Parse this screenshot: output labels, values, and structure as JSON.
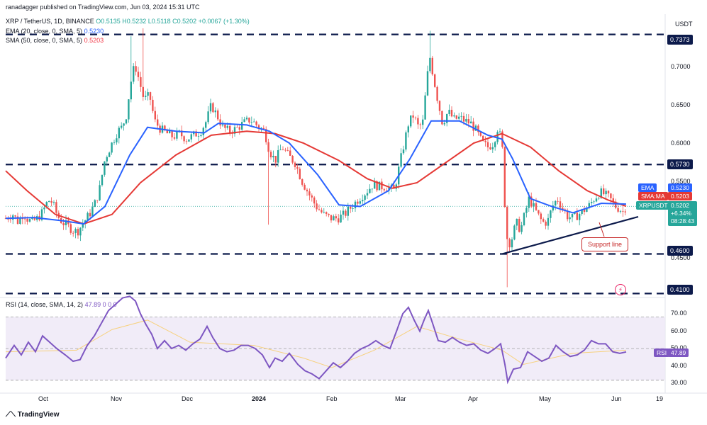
{
  "header": {
    "author": "ranadagger published on TradingView.com, Jun 03, 2024 15:31 UTC",
    "symbol": "XRP / TetherUS, 1D, BINANCE",
    "ohlc": "O0.5135 H0.5232 L0.5118 C0.5202 +0.0067 (+1.30%)",
    "ema_label": "EMA (20, close, 0, SMA, 5)",
    "ema_value": "0.5230",
    "sma_label": "SMA (50, close, 0, SMA, 5)",
    "sma_value": "0.5203",
    "currency": "USDT"
  },
  "rsi_header": {
    "label": "RSI (14, close, SMA, 14, 2)",
    "value": "47.89",
    "tail": "0 0 0"
  },
  "price_axis": [
    "0.7000",
    "0.6500",
    "0.6000",
    "0.5500",
    "0.4500"
  ],
  "levels": [
    "0.7373",
    "0.5730",
    "0.4600",
    "0.4100"
  ],
  "rsi_axis": [
    "70.00",
    "60.00",
    "50.00",
    "40.00",
    "30.00"
  ],
  "x_axis": [
    "Oct",
    "Nov",
    "Dec",
    "2024",
    "Feb",
    "Mar",
    "Apr",
    "May",
    "Jun",
    "19"
  ],
  "tags": {
    "ema": "EMA",
    "ema_value": "0.5230",
    "sma": "SMA:MA",
    "sma_value": "0.5203",
    "symbol": "XRPUSDT",
    "price": "0.5202",
    "change": "+6.34%",
    "countdown": "08:28:43",
    "rsi": "RSI",
    "rsi_value": "47.89"
  },
  "support_label": "Support line",
  "footer": "TradingView",
  "colors": {
    "up": "#26a69a",
    "down": "#ef5350",
    "ema": "#2962ff",
    "sma": "#e53935",
    "level": "#0c1a4b",
    "rsi": "#7e57c2"
  },
  "chart_data": {
    "type": "candlestick",
    "title": "XRP / TetherUS, 1D, BINANCE",
    "x_ticks": [
      "Oct",
      "Nov",
      "Dec",
      "2024",
      "Feb",
      "Mar",
      "Apr",
      "May",
      "Jun"
    ],
    "price_range": [
      0.405,
      0.745
    ],
    "horizontal_levels": [
      0.7373,
      0.573,
      0.46,
      0.41
    ],
    "support_line": {
      "start": [
        "Apr 13",
        0.46
      ],
      "end": [
        "Jun 05",
        0.506
      ]
    },
    "last": {
      "open": 0.5135,
      "high": 0.5232,
      "low": 0.5118,
      "close": 0.5202,
      "change": 0.0067,
      "change_pct": 1.3
    },
    "close_path": [
      {
        "t": 0,
        "c": 0.505
      },
      {
        "t": 10,
        "c": 0.51
      },
      {
        "t": 18,
        "c": 0.5
      },
      {
        "t": 25,
        "c": 0.512
      },
      {
        "t": 30,
        "c": 0.505
      },
      {
        "t": 37,
        "c": 0.5
      },
      {
        "t": 45,
        "c": 0.505
      },
      {
        "t": 52,
        "c": 0.513
      },
      {
        "t": 60,
        "c": 0.528
      },
      {
        "t": 66,
        "c": 0.525
      },
      {
        "t": 73,
        "c": 0.508
      },
      {
        "t": 80,
        "c": 0.5
      },
      {
        "t": 88,
        "c": 0.495
      },
      {
        "t": 95,
        "c": 0.49
      },
      {
        "t": 101,
        "c": 0.488
      },
      {
        "t": 110,
        "c": 0.5
      },
      {
        "t": 118,
        "c": 0.51
      },
      {
        "t": 125,
        "c": 0.522
      },
      {
        "t": 132,
        "c": 0.54
      },
      {
        "t": 140,
        "c": 0.58
      },
      {
        "t": 150,
        "c": 0.6
      },
      {
        "t": 158,
        "c": 0.615
      },
      {
        "t": 164,
        "c": 0.62
      },
      {
        "t": 170,
        "c": 0.635
      },
      {
        "t": 176,
        "c": 0.675
      },
      {
        "t": 182,
        "c": 0.7
      },
      {
        "t": 188,
        "c": 0.68
      },
      {
        "t": 195,
        "c": 0.655
      },
      {
        "t": 203,
        "c": 0.66
      },
      {
        "t": 210,
        "c": 0.628
      },
      {
        "t": 218,
        "c": 0.618
      },
      {
        "t": 228,
        "c": 0.612
      },
      {
        "t": 236,
        "c": 0.608
      },
      {
        "t": 245,
        "c": 0.612
      },
      {
        "t": 255,
        "c": 0.605
      },
      {
        "t": 265,
        "c": 0.61
      },
      {
        "t": 275,
        "c": 0.615
      },
      {
        "t": 283,
        "c": 0.628
      },
      {
        "t": 290,
        "c": 0.648
      },
      {
        "t": 298,
        "c": 0.635
      },
      {
        "t": 306,
        "c": 0.62
      },
      {
        "t": 315,
        "c": 0.615
      },
      {
        "t": 325,
        "c": 0.618
      },
      {
        "t": 335,
        "c": 0.625
      },
      {
        "t": 345,
        "c": 0.63
      },
      {
        "t": 355,
        "c": 0.622
      },
      {
        "t": 365,
        "c": 0.615
      },
      {
        "t": 372,
        "c": 0.59
      },
      {
        "t": 380,
        "c": 0.578
      },
      {
        "t": 390,
        "c": 0.595
      },
      {
        "t": 398,
        "c": 0.585
      },
      {
        "t": 408,
        "c": 0.575
      },
      {
        "t": 418,
        "c": 0.552
      },
      {
        "t": 428,
        "c": 0.535
      },
      {
        "t": 438,
        "c": 0.52
      },
      {
        "t": 448,
        "c": 0.51
      },
      {
        "t": 458,
        "c": 0.505
      },
      {
        "t": 468,
        "c": 0.505
      },
      {
        "t": 478,
        "c": 0.51
      },
      {
        "t": 488,
        "c": 0.52
      },
      {
        "t": 498,
        "c": 0.53
      },
      {
        "t": 508,
        "c": 0.538
      },
      {
        "t": 518,
        "c": 0.548
      },
      {
        "t": 528,
        "c": 0.545
      },
      {
        "t": 538,
        "c": 0.545
      },
      {
        "t": 548,
        "c": 0.54
      },
      {
        "t": 556,
        "c": 0.575
      },
      {
        "t": 562,
        "c": 0.6
      },
      {
        "t": 568,
        "c": 0.625
      },
      {
        "t": 575,
        "c": 0.635
      },
      {
        "t": 582,
        "c": 0.62
      },
      {
        "t": 588,
        "c": 0.625
      },
      {
        "t": 594,
        "c": 0.68
      },
      {
        "t": 598,
        "c": 0.71
      },
      {
        "t": 602,
        "c": 0.69
      },
      {
        "t": 608,
        "c": 0.66
      },
      {
        "t": 616,
        "c": 0.625
      },
      {
        "t": 624,
        "c": 0.64
      },
      {
        "t": 632,
        "c": 0.63
      },
      {
        "t": 640,
        "c": 0.632
      },
      {
        "t": 648,
        "c": 0.628
      },
      {
        "t": 656,
        "c": 0.625
      },
      {
        "t": 664,
        "c": 0.615
      },
      {
        "t": 672,
        "c": 0.6
      },
      {
        "t": 680,
        "c": 0.595
      },
      {
        "t": 688,
        "c": 0.6
      },
      {
        "t": 694,
        "c": 0.62
      },
      {
        "t": 700,
        "c": 0.6
      },
      {
        "t": 704,
        "c": 0.52
      },
      {
        "t": 708,
        "c": 0.47
      },
      {
        "t": 714,
        "c": 0.48
      },
      {
        "t": 720,
        "c": 0.5
      },
      {
        "t": 726,
        "c": 0.49
      },
      {
        "t": 732,
        "c": 0.51
      },
      {
        "t": 738,
        "c": 0.53
      },
      {
        "t": 744,
        "c": 0.52
      },
      {
        "t": 750,
        "c": 0.51
      },
      {
        "t": 757,
        "c": 0.5
      },
      {
        "t": 764,
        "c": 0.5
      },
      {
        "t": 771,
        "c": 0.52
      },
      {
        "t": 778,
        "c": 0.53
      },
      {
        "t": 785,
        "c": 0.518
      },
      {
        "t": 792,
        "c": 0.508
      },
      {
        "t": 800,
        "c": 0.505
      },
      {
        "t": 808,
        "c": 0.51
      },
      {
        "t": 815,
        "c": 0.515
      },
      {
        "t": 822,
        "c": 0.52
      },
      {
        "t": 830,
        "c": 0.53
      },
      {
        "t": 838,
        "c": 0.538
      },
      {
        "t": 845,
        "c": 0.535
      },
      {
        "t": 852,
        "c": 0.53
      },
      {
        "t": 860,
        "c": 0.52
      },
      {
        "t": 866,
        "c": 0.517
      },
      {
        "t": 870,
        "c": 0.513
      },
      {
        "t": 875,
        "c": 0.5202
      }
    ],
    "ema20_path": [
      {
        "t": 0,
        "c": 0.505
      },
      {
        "t": 40,
        "c": 0.506
      },
      {
        "t": 80,
        "c": 0.502
      },
      {
        "t": 110,
        "c": 0.498
      },
      {
        "t": 140,
        "c": 0.52
      },
      {
        "t": 175,
        "c": 0.585
      },
      {
        "t": 200,
        "c": 0.62
      },
      {
        "t": 240,
        "c": 0.615
      },
      {
        "t": 280,
        "c": 0.613
      },
      {
        "t": 300,
        "c": 0.625
      },
      {
        "t": 340,
        "c": 0.623
      },
      {
        "t": 372,
        "c": 0.615
      },
      {
        "t": 400,
        "c": 0.6
      },
      {
        "t": 440,
        "c": 0.56
      },
      {
        "t": 470,
        "c": 0.522
      },
      {
        "t": 500,
        "c": 0.52
      },
      {
        "t": 540,
        "c": 0.54
      },
      {
        "t": 570,
        "c": 0.58
      },
      {
        "t": 600,
        "c": 0.628
      },
      {
        "t": 640,
        "c": 0.628
      },
      {
        "t": 680,
        "c": 0.61
      },
      {
        "t": 700,
        "c": 0.605
      },
      {
        "t": 715,
        "c": 0.58
      },
      {
        "t": 740,
        "c": 0.53
      },
      {
        "t": 770,
        "c": 0.52
      },
      {
        "t": 800,
        "c": 0.512
      },
      {
        "t": 840,
        "c": 0.524
      },
      {
        "t": 875,
        "c": 0.523
      }
    ],
    "sma50_path": [
      {
        "t": 0,
        "c": 0.565
      },
      {
        "t": 30,
        "c": 0.54
      },
      {
        "t": 70,
        "c": 0.51
      },
      {
        "t": 110,
        "c": 0.498
      },
      {
        "t": 150,
        "c": 0.51
      },
      {
        "t": 190,
        "c": 0.55
      },
      {
        "t": 240,
        "c": 0.585
      },
      {
        "t": 290,
        "c": 0.61
      },
      {
        "t": 340,
        "c": 0.615
      },
      {
        "t": 380,
        "c": 0.612
      },
      {
        "t": 420,
        "c": 0.6
      },
      {
        "t": 470,
        "c": 0.578
      },
      {
        "t": 510,
        "c": 0.555
      },
      {
        "t": 545,
        "c": 0.543
      },
      {
        "t": 580,
        "c": 0.55
      },
      {
        "t": 620,
        "c": 0.575
      },
      {
        "t": 660,
        "c": 0.6
      },
      {
        "t": 700,
        "c": 0.612
      },
      {
        "t": 740,
        "c": 0.595
      },
      {
        "t": 780,
        "c": 0.565
      },
      {
        "t": 820,
        "c": 0.54
      },
      {
        "t": 850,
        "c": 0.528
      },
      {
        "t": 875,
        "c": 0.5203
      }
    ],
    "rsi": {
      "range": [
        25,
        80
      ],
      "last": 47.89,
      "path": [
        {
          "t": 0,
          "v": 44
        },
        {
          "t": 12,
          "v": 52
        },
        {
          "t": 22,
          "v": 46
        },
        {
          "t": 32,
          "v": 54
        },
        {
          "t": 42,
          "v": 48
        },
        {
          "t": 52,
          "v": 58
        },
        {
          "t": 62,
          "v": 54
        },
        {
          "t": 72,
          "v": 50
        },
        {
          "t": 84,
          "v": 46
        },
        {
          "t": 95,
          "v": 42
        },
        {
          "t": 105,
          "v": 43
        },
        {
          "t": 115,
          "v": 52
        },
        {
          "t": 125,
          "v": 58
        },
        {
          "t": 135,
          "v": 66
        },
        {
          "t": 145,
          "v": 74
        },
        {
          "t": 155,
          "v": 78
        },
        {
          "t": 165,
          "v": 82
        },
        {
          "t": 175,
          "v": 83
        },
        {
          "t": 183,
          "v": 80
        },
        {
          "t": 190,
          "v": 72
        },
        {
          "t": 198,
          "v": 65
        },
        {
          "t": 206,
          "v": 59
        },
        {
          "t": 214,
          "v": 50
        },
        {
          "t": 224,
          "v": 55
        },
        {
          "t": 234,
          "v": 50
        },
        {
          "t": 244,
          "v": 52
        },
        {
          "t": 254,
          "v": 49
        },
        {
          "t": 264,
          "v": 53
        },
        {
          "t": 274,
          "v": 56
        },
        {
          "t": 284,
          "v": 64
        },
        {
          "t": 292,
          "v": 57
        },
        {
          "t": 302,
          "v": 50
        },
        {
          "t": 312,
          "v": 48
        },
        {
          "t": 322,
          "v": 49
        },
        {
          "t": 332,
          "v": 52
        },
        {
          "t": 342,
          "v": 52
        },
        {
          "t": 352,
          "v": 50
        },
        {
          "t": 362,
          "v": 46
        },
        {
          "t": 372,
          "v": 38
        },
        {
          "t": 380,
          "v": 44
        },
        {
          "t": 390,
          "v": 42
        },
        {
          "t": 400,
          "v": 47
        },
        {
          "t": 412,
          "v": 40
        },
        {
          "t": 422,
          "v": 36
        },
        {
          "t": 432,
          "v": 34
        },
        {
          "t": 442,
          "v": 31
        },
        {
          "t": 452,
          "v": 36
        },
        {
          "t": 462,
          "v": 41
        },
        {
          "t": 472,
          "v": 38
        },
        {
          "t": 482,
          "v": 42
        },
        {
          "t": 492,
          "v": 47
        },
        {
          "t": 502,
          "v": 50
        },
        {
          "t": 512,
          "v": 52
        },
        {
          "t": 522,
          "v": 55
        },
        {
          "t": 532,
          "v": 52
        },
        {
          "t": 542,
          "v": 50
        },
        {
          "t": 552,
          "v": 62
        },
        {
          "t": 560,
          "v": 72
        },
        {
          "t": 568,
          "v": 76
        },
        {
          "t": 576,
          "v": 68
        },
        {
          "t": 584,
          "v": 61
        },
        {
          "t": 590,
          "v": 68
        },
        {
          "t": 596,
          "v": 74
        },
        {
          "t": 602,
          "v": 66
        },
        {
          "t": 610,
          "v": 55
        },
        {
          "t": 620,
          "v": 54
        },
        {
          "t": 630,
          "v": 57
        },
        {
          "t": 640,
          "v": 54
        },
        {
          "t": 650,
          "v": 52
        },
        {
          "t": 660,
          "v": 53
        },
        {
          "t": 670,
          "v": 49
        },
        {
          "t": 680,
          "v": 47
        },
        {
          "t": 690,
          "v": 50
        },
        {
          "t": 698,
          "v": 53
        },
        {
          "t": 704,
          "v": 40
        },
        {
          "t": 708,
          "v": 29
        },
        {
          "t": 716,
          "v": 37
        },
        {
          "t": 726,
          "v": 38
        },
        {
          "t": 736,
          "v": 48
        },
        {
          "t": 746,
          "v": 45
        },
        {
          "t": 756,
          "v": 42
        },
        {
          "t": 766,
          "v": 44
        },
        {
          "t": 776,
          "v": 52
        },
        {
          "t": 786,
          "v": 48
        },
        {
          "t": 796,
          "v": 45
        },
        {
          "t": 806,
          "v": 46
        },
        {
          "t": 816,
          "v": 49
        },
        {
          "t": 826,
          "v": 55
        },
        {
          "t": 836,
          "v": 53
        },
        {
          "t": 846,
          "v": 53
        },
        {
          "t": 856,
          "v": 48
        },
        {
          "t": 866,
          "v": 47
        },
        {
          "t": 875,
          "v": 47.89
        }
      ],
      "rsi_ma_path": [
        {
          "t": 0,
          "v": 48
        },
        {
          "t": 100,
          "v": 49
        },
        {
          "t": 150,
          "v": 62
        },
        {
          "t": 200,
          "v": 68
        },
        {
          "t": 260,
          "v": 54
        },
        {
          "t": 350,
          "v": 52
        },
        {
          "t": 420,
          "v": 44
        },
        {
          "t": 460,
          "v": 38
        },
        {
          "t": 520,
          "v": 49
        },
        {
          "t": 580,
          "v": 64
        },
        {
          "t": 640,
          "v": 56
        },
        {
          "t": 700,
          "v": 49
        },
        {
          "t": 730,
          "v": 40
        },
        {
          "t": 800,
          "v": 47
        },
        {
          "t": 875,
          "v": 49
        }
      ]
    }
  }
}
